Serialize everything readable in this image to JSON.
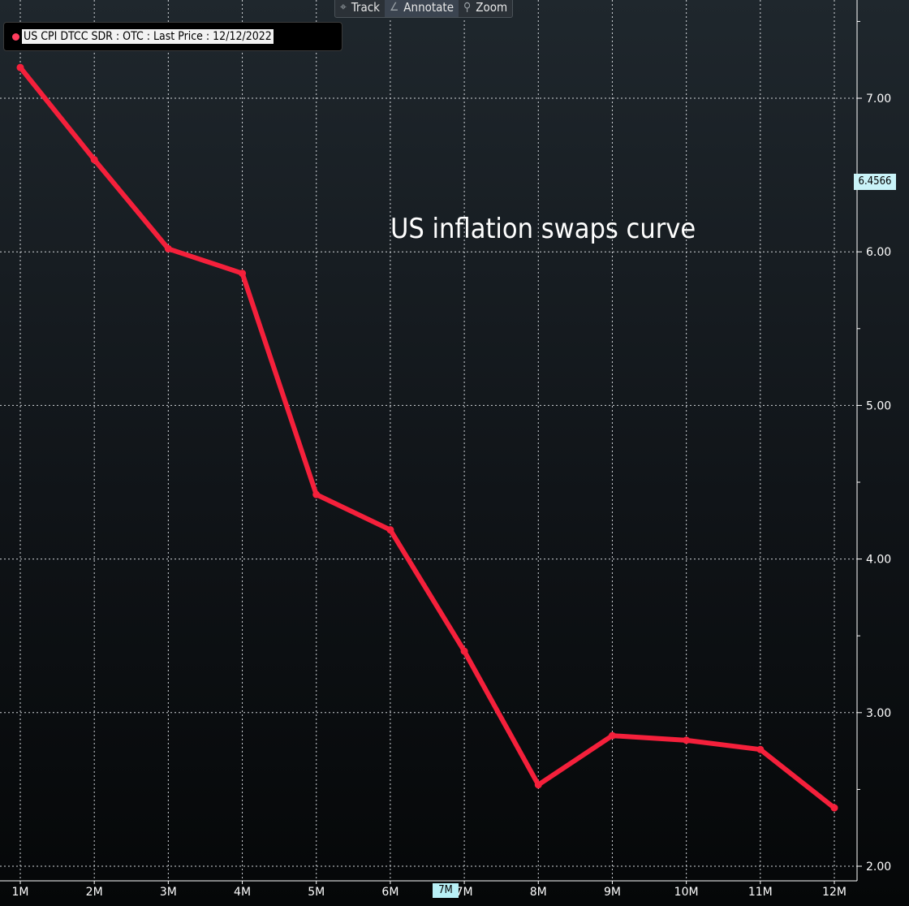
{
  "toolbar": {
    "items": [
      {
        "label": "Track",
        "icon": "crosshair-icon",
        "glyph": "⌖"
      },
      {
        "label": "Annotate",
        "icon": "pencil-icon",
        "glyph": "∠"
      },
      {
        "label": "Zoom",
        "icon": "magnifier-icon",
        "glyph": "⚲"
      }
    ]
  },
  "legend": {
    "label": "US CPI DTCC SDR : OTC : Last Price : 12/12/2022",
    "color": "#ff3d5e"
  },
  "last_price_badge": "6.4566",
  "cursor_badge": "7M",
  "chart_data": {
    "type": "line",
    "title": "US inflation swaps curve",
    "x": [
      "1M",
      "2M",
      "3M",
      "4M",
      "5M",
      "6M",
      "7M",
      "8M",
      "9M",
      "10M",
      "11M",
      "12M"
    ],
    "series": [
      {
        "name": "US CPI DTCC SDR : OTC : Last Price : 12/12/2022",
        "color": "#f5203b",
        "values": [
          7.2,
          6.6,
          6.02,
          5.86,
          4.42,
          4.19,
          3.4,
          2.53,
          2.85,
          2.82,
          2.76,
          2.38
        ]
      }
    ],
    "ylim": [
      2.0,
      7.6
    ],
    "yticks": [
      2.0,
      3.0,
      4.0,
      5.0,
      6.0,
      7.0
    ],
    "ytick_labels": [
      "2.00",
      "3.00",
      "4.00",
      "5.00",
      "6.00",
      "7.00"
    ],
    "y_axis_side": "right",
    "grid": true,
    "legend_position": "top-left"
  }
}
